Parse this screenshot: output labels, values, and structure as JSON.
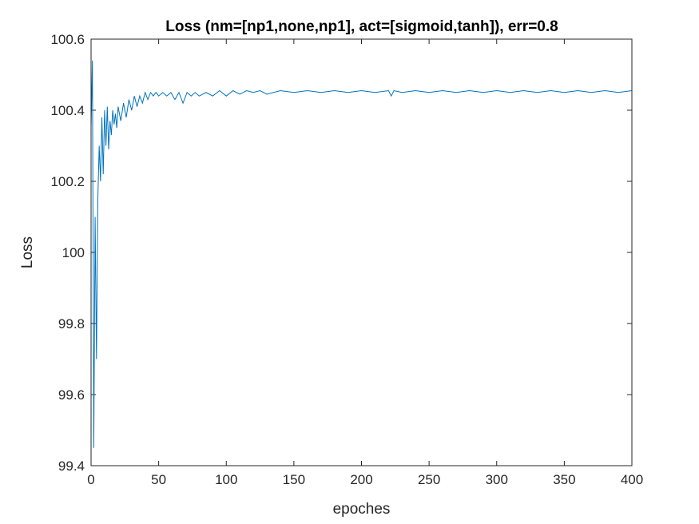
{
  "chart_data": {
    "type": "line",
    "title": "Loss (nm=[np1,none,np1], act=[sigmoid,tanh]), err=0.8",
    "xlabel": "epoches",
    "ylabel": "Loss",
    "xlim": [
      0,
      400
    ],
    "ylim": [
      99.4,
      100.6
    ],
    "xticks": [
      0,
      50,
      100,
      150,
      200,
      250,
      300,
      350,
      400
    ],
    "xtick_labels": [
      "0",
      "50",
      "100",
      "150",
      "200",
      "250",
      "300",
      "350",
      "400"
    ],
    "yticks": [
      99.4,
      99.6,
      99.8,
      100,
      100.2,
      100.4,
      100.6
    ],
    "ytick_labels": [
      "99.4",
      "99.6",
      "99.8",
      "100",
      "100.2",
      "100.4",
      "100.6"
    ],
    "grid": false,
    "line_color": "#0072BD",
    "series": [
      {
        "x": [
          0,
          1,
          2,
          3,
          4,
          5,
          6,
          7,
          8,
          9,
          10,
          11,
          12,
          13,
          14,
          15,
          16,
          17,
          18,
          19,
          20,
          22,
          24,
          26,
          28,
          30,
          32,
          34,
          36,
          38,
          40,
          42,
          44,
          46,
          48,
          50,
          53,
          56,
          59,
          62,
          65,
          68,
          71,
          74,
          77,
          80,
          85,
          90,
          95,
          100,
          105,
          110,
          115,
          120,
          125,
          130,
          140,
          150,
          160,
          170,
          180,
          190,
          200,
          210,
          220,
          222,
          224,
          230,
          240,
          250,
          260,
          270,
          280,
          290,
          300,
          310,
          320,
          330,
          340,
          350,
          360,
          370,
          380,
          390,
          400
        ],
        "y": [
          100.35,
          100.54,
          99.45,
          100.1,
          99.7,
          100.15,
          100.3,
          100.2,
          100.38,
          100.22,
          100.4,
          100.3,
          100.41,
          100.29,
          100.37,
          100.33,
          100.4,
          100.36,
          100.39,
          100.35,
          100.41,
          100.37,
          100.42,
          100.38,
          100.43,
          100.4,
          100.44,
          100.41,
          100.44,
          100.42,
          100.45,
          100.43,
          100.45,
          100.44,
          100.45,
          100.44,
          100.45,
          100.44,
          100.45,
          100.43,
          100.45,
          100.42,
          100.45,
          100.44,
          100.45,
          100.44,
          100.45,
          100.44,
          100.455,
          100.44,
          100.455,
          100.445,
          100.455,
          100.45,
          100.455,
          100.445,
          100.455,
          100.45,
          100.455,
          100.45,
          100.455,
          100.45,
          100.455,
          100.45,
          100.455,
          100.44,
          100.455,
          100.45,
          100.455,
          100.45,
          100.455,
          100.45,
          100.455,
          100.45,
          100.455,
          100.45,
          100.455,
          100.45,
          100.455,
          100.45,
          100.455,
          100.45,
          100.455,
          100.45,
          100.455
        ]
      }
    ]
  }
}
